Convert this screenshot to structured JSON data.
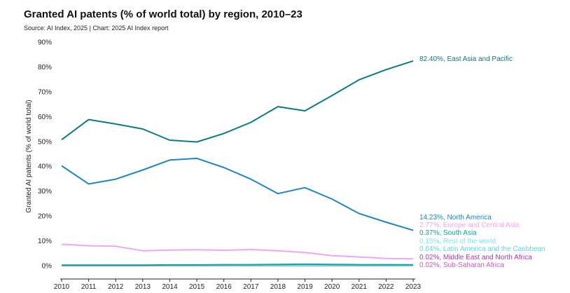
{
  "title": "Granted AI patents (% of world total) by region, 2010–23",
  "subtitle": "Source: AI Index, 2025 | Chart: 2025 AI Index report",
  "chart_data": {
    "type": "line",
    "ylabel": "Granted AI patents (% of world total)",
    "xlabel": "",
    "x": [
      2010,
      2011,
      2012,
      2013,
      2014,
      2015,
      2016,
      2017,
      2018,
      2019,
      2020,
      2021,
      2022,
      2023
    ],
    "xticks": [
      "2010",
      "2011",
      "2012",
      "2013",
      "2014",
      "2015",
      "2016",
      "2017",
      "2018",
      "2019",
      "2020",
      "2021",
      "2022",
      "2023"
    ],
    "ylim": [
      0,
      92
    ],
    "yticks": [
      "0%",
      "10%",
      "20%",
      "30%",
      "40%",
      "50%",
      "60%",
      "70%",
      "80%",
      "90%"
    ],
    "ytick_values": [
      0,
      10,
      20,
      30,
      40,
      50,
      60,
      70,
      80,
      90
    ],
    "grid": false,
    "legend": "end-of-line labels",
    "series": [
      {
        "name": "East Asia and Pacific",
        "end_label": "82.40%, East Asia and Pacific",
        "color": "#0b7c7c",
        "values": [
          50.7,
          58.8,
          57.0,
          55.0,
          50.5,
          49.8,
          53.2,
          57.7,
          64.0,
          62.3,
          68.5,
          74.8,
          78.9,
          82.4
        ]
      },
      {
        "name": "North America",
        "end_label": "14.23%, North America",
        "color": "#1f86c0",
        "values": [
          40.2,
          32.9,
          34.8,
          38.5,
          42.5,
          43.2,
          39.5,
          34.8,
          29.0,
          31.4,
          26.8,
          21.0,
          17.5,
          14.23
        ]
      },
      {
        "name": "Europe and Central Asia",
        "end_label": "2.77%, Europe and Central Asia",
        "color": "#f1a7ef",
        "values": [
          8.6,
          8.0,
          7.8,
          6.0,
          6.3,
          6.4,
          6.2,
          6.5,
          6.0,
          5.3,
          4.0,
          3.5,
          2.9,
          2.77
        ]
      },
      {
        "name": "South Asia",
        "end_label": "0.37%, South Asia",
        "color": "#10a6a0",
        "values": [
          0.2,
          0.2,
          0.2,
          0.2,
          0.3,
          0.3,
          0.4,
          0.4,
          0.5,
          0.6,
          0.5,
          0.4,
          0.4,
          0.37
        ]
      },
      {
        "name": "Rest of the world",
        "end_label": "0.15%, Rest of the world",
        "color": "#7ce8e8",
        "values": [
          0.2,
          0.2,
          0.2,
          0.2,
          0.2,
          0.2,
          0.2,
          0.2,
          0.2,
          0.2,
          0.2,
          0.2,
          0.2,
          0.15
        ]
      },
      {
        "name": "Latin America and the Caribbean",
        "end_label": "0.04%, Latin America and the Caribbean",
        "color": "#5fd8e0",
        "values": [
          0.1,
          0.1,
          0.1,
          0.1,
          0.1,
          0.1,
          0.1,
          0.1,
          0.1,
          0.1,
          0.1,
          0.1,
          0.05,
          0.04
        ]
      },
      {
        "name": "Middle East and North Africa",
        "end_label": "0.02%, Middle East and North Africa",
        "color": "#b03aa8",
        "values": [
          0.05,
          0.05,
          0.05,
          0.05,
          0.05,
          0.05,
          0.05,
          0.05,
          0.05,
          0.05,
          0.03,
          0.03,
          0.02,
          0.02
        ]
      },
      {
        "name": "Sub-Saharan Africa",
        "end_label": "0.02%, Sub-Saharan Africa",
        "color": "#c75fc2",
        "values": [
          0.02,
          0.02,
          0.02,
          0.02,
          0.02,
          0.02,
          0.02,
          0.02,
          0.02,
          0.02,
          0.02,
          0.02,
          0.02,
          0.02
        ]
      }
    ]
  }
}
